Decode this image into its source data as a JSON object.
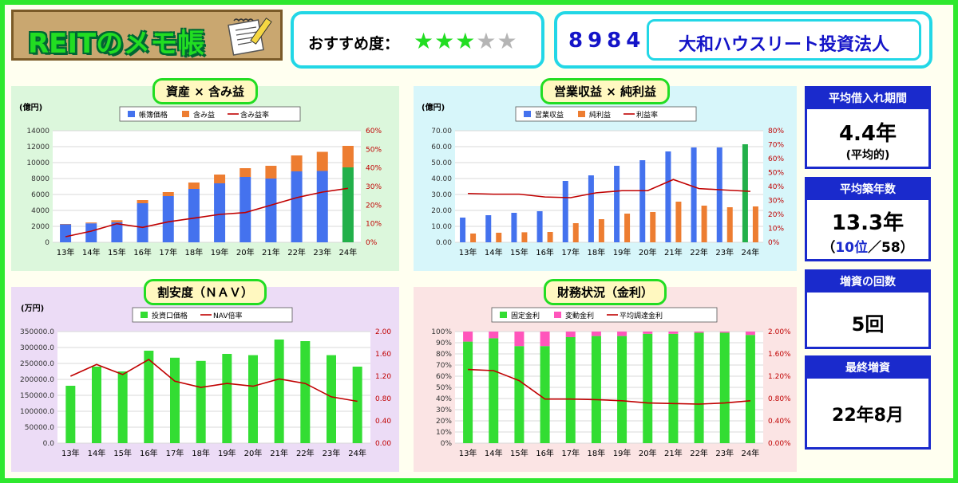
{
  "header": {
    "logo_text": "REITのメモ帳",
    "rating_label": "おすすめ度：",
    "rating": 3,
    "rating_max": 5,
    "code": "8984",
    "name": "大和ハウスリート投資法人"
  },
  "colors": {
    "bar_blue": "#4472ee",
    "bar_orange": "#ed7d31",
    "line_red": "#c00000",
    "bar_green": "#33dd33",
    "bar_highlight": "#22b04a",
    "bar_pink": "#ff55bb",
    "accent_blue": "#1a2acc"
  },
  "stats": [
    {
      "title": "平均借入れ期間",
      "value": "4.4年",
      "note": "(平均的)"
    },
    {
      "title": "平均築年数",
      "value": "13.3年",
      "note_open": "（",
      "note_rank": "10位",
      "note_slash": "／",
      "note_total": "58",
      "note_close": "）"
    },
    {
      "title": "増資の回数",
      "value": "5回"
    },
    {
      "title": "最終増資",
      "value": "22年8月"
    }
  ],
  "chart_data": [
    {
      "type": "bar",
      "title": "資産 × 含み益",
      "unit": "(億円)",
      "stacked": true,
      "categories": [
        "13年",
        "14年",
        "15年",
        "16年",
        "17年",
        "18年",
        "19年",
        "20年",
        "21年",
        "22年",
        "23年",
        "24年"
      ],
      "series": [
        {
          "name": "帳簿価格",
          "type": "bar",
          "values": [
            2250,
            2380,
            2520,
            4900,
            5800,
            6700,
            7400,
            8200,
            8000,
            8900,
            8950,
            9400
          ]
        },
        {
          "name": "含み益",
          "type": "bar",
          "values": [
            50,
            100,
            250,
            400,
            500,
            800,
            1100,
            1100,
            1600,
            2000,
            2400,
            2700
          ]
        },
        {
          "name": "含み益率",
          "type": "line",
          "axis": "right",
          "values": [
            3,
            6,
            10,
            8,
            11,
            13,
            15,
            16,
            20,
            24,
            27,
            29
          ]
        }
      ],
      "ylim": [
        0,
        14000
      ],
      "yticks": [
        "0",
        "2000",
        "4000",
        "6000",
        "8000",
        "10000",
        "12000",
        "14000"
      ],
      "y2lim": [
        0,
        60
      ],
      "y2ticks": [
        "0%",
        "10%",
        "20%",
        "30%",
        "40%",
        "50%",
        "60%"
      ],
      "legend": "top"
    },
    {
      "type": "bar",
      "title": "営業収益 × 純利益",
      "unit": "(億円)",
      "categories": [
        "13年",
        "14年",
        "15年",
        "16年",
        "17年",
        "18年",
        "19年",
        "20年",
        "21年",
        "22年",
        "23年",
        "24年"
      ],
      "series": [
        {
          "name": "営業収益",
          "type": "bar",
          "values": [
            15.5,
            17,
            18.5,
            19.5,
            38.5,
            42,
            48,
            51.5,
            57,
            59.5,
            59.5,
            61.5
          ]
        },
        {
          "name": "純利益",
          "type": "bar",
          "values": [
            5.5,
            6,
            6.3,
            6.5,
            12,
            14.5,
            18,
            19,
            25.5,
            23,
            22,
            22.5
          ]
        },
        {
          "name": "利益率",
          "type": "line",
          "axis": "right",
          "values": [
            35,
            34.5,
            34.5,
            32.5,
            32,
            35.5,
            37,
            37,
            45,
            38.5,
            37.5,
            36.5
          ]
        }
      ],
      "ylim": [
        0,
        70
      ],
      "yticks": [
        "0.00",
        "10.00",
        "20.00",
        "30.00",
        "40.00",
        "50.00",
        "60.00",
        "70.00"
      ],
      "y2lim": [
        0,
        80
      ],
      "y2ticks": [
        "0%",
        "10%",
        "20%",
        "30%",
        "40%",
        "50%",
        "60%",
        "70%",
        "80%"
      ],
      "legend": "top"
    },
    {
      "type": "bar",
      "title": "割安度（ＮＡＶ）",
      "unit": "(万円)",
      "categories": [
        "13年",
        "14年",
        "15年",
        "16年",
        "17年",
        "18年",
        "19年",
        "20年",
        "21年",
        "22年",
        "23年",
        "24年"
      ],
      "series": [
        {
          "name": "投資口価格",
          "type": "bar",
          "values": [
            180000,
            240000,
            225000,
            290000,
            268000,
            258000,
            280000,
            276000,
            325000,
            320000,
            276000,
            240000
          ]
        },
        {
          "name": "NAV倍率",
          "type": "line",
          "axis": "right",
          "values": [
            1.2,
            1.41,
            1.23,
            1.5,
            1.11,
            1.0,
            1.07,
            1.02,
            1.15,
            1.07,
            0.83,
            0.75
          ]
        }
      ],
      "ylim": [
        0,
        350000
      ],
      "yticks": [
        "0.0",
        "50000.0",
        "100000.0",
        "150000.0",
        "200000.0",
        "250000.0",
        "300000.0",
        "350000.0"
      ],
      "y2lim": [
        0,
        2.0
      ],
      "y2ticks": [
        "0.00",
        "0.40",
        "0.80",
        "1.20",
        "1.60",
        "2.00"
      ],
      "legend": "top"
    },
    {
      "type": "bar",
      "title": "財務状況（金利）",
      "stacked": true,
      "categories": [
        "13年",
        "14年",
        "15年",
        "16年",
        "17年",
        "18年",
        "19年",
        "20年",
        "21年",
        "22年",
        "23年",
        "24年"
      ],
      "series": [
        {
          "name": "固定金利",
          "type": "bar",
          "values": [
            91,
            94,
            87,
            87,
            95,
            96,
            96,
            98,
            98,
            99,
            99,
            97
          ]
        },
        {
          "name": "変動金利",
          "type": "bar",
          "values": [
            9,
            6,
            13,
            13,
            5,
            4,
            4,
            2,
            2,
            1,
            1,
            3
          ]
        },
        {
          "name": "平均調達金利",
          "type": "line",
          "axis": "right",
          "values": [
            1.32,
            1.3,
            1.12,
            0.79,
            0.79,
            0.78,
            0.76,
            0.72,
            0.71,
            0.7,
            0.72,
            0.76
          ]
        }
      ],
      "ylim": [
        0,
        100
      ],
      "yticks": [
        "0%",
        "10%",
        "20%",
        "30%",
        "40%",
        "50%",
        "60%",
        "70%",
        "80%",
        "90%",
        "100%"
      ],
      "y2lim": [
        0,
        2.0
      ],
      "y2ticks": [
        "0.00%",
        "0.40%",
        "0.80%",
        "1.20%",
        "1.60%",
        "2.00%"
      ],
      "legend": "top"
    }
  ]
}
